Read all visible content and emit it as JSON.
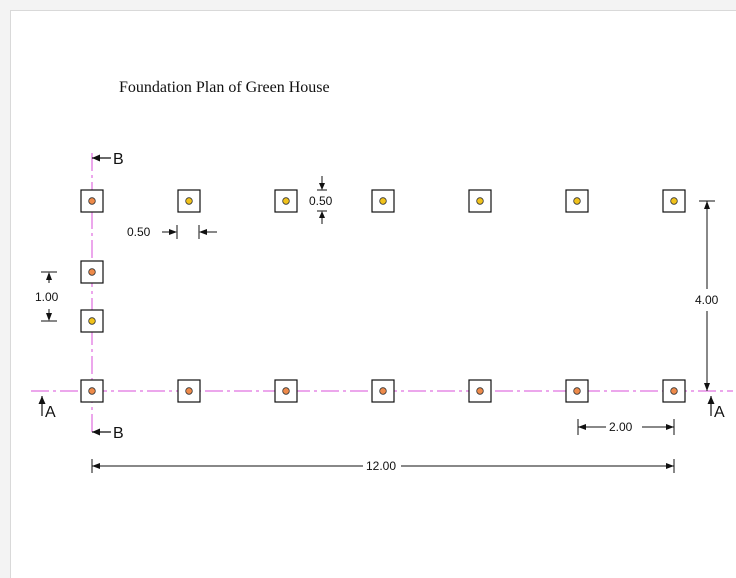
{
  "title": "Foundation Plan of Green House",
  "dimensions": {
    "footing_size_top": "0.50",
    "footing_gap_left": "0.50",
    "footing_spacing_vertical": "1.00",
    "height": "4.00",
    "bay_spacing": "2.00",
    "total_length": "12.00"
  },
  "section_labels": {
    "section_b": "B",
    "section_a": "A"
  },
  "colors": {
    "centerline": "#d84fd8",
    "footing_yellow": "#f1c21b",
    "footing_orange": "#ee8a4a",
    "linework": "#111111"
  }
}
